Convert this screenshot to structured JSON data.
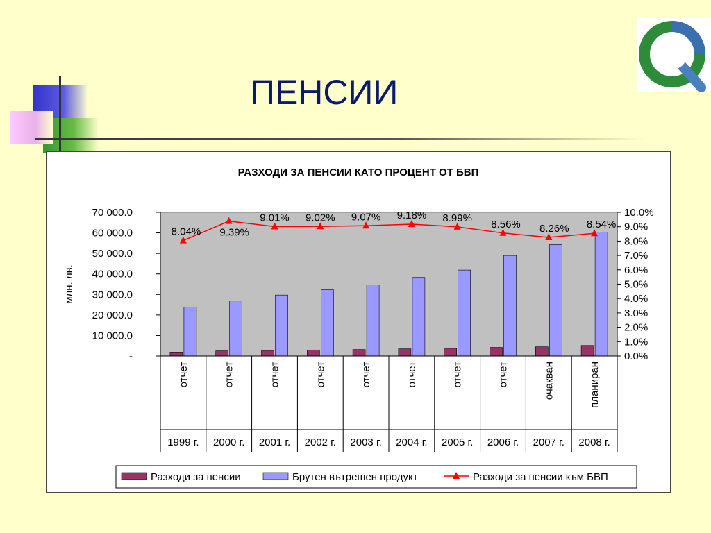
{
  "slide": {
    "title": "ПЕНСИИ"
  },
  "logo": {
    "icon": "circular-q-logo-icon"
  },
  "colors": {
    "background": "#ffffcc",
    "title": "#0b1a6b",
    "pension_bar": "#993366",
    "gdp_bar": "#9999ff",
    "ratio_line": "#ff0000",
    "plot_area": "#c0c0c0"
  },
  "chart_data": {
    "type": "bar",
    "title": "РАЗХОДИ ЗА ПЕНСИИ КАТО ПРОЦЕНТ ОТ БВП",
    "ylabel": "млн. лв.",
    "categories": [
      "1999 г.",
      "2000 г.",
      "2001 г.",
      "2002 г.",
      "2003 г.",
      "2004 г.",
      "2005 г.",
      "2006 г.",
      "2007 г.",
      "2008 г."
    ],
    "subcategories": [
      "отчет",
      "отчет",
      "отчет",
      "отчет",
      "отчет",
      "отчет",
      "отчет",
      "отчет",
      "очакван",
      "планиран"
    ],
    "ylim": [
      0,
      70000
    ],
    "y_ticks": [
      "-",
      "10 000.0",
      "20 000.0",
      "30 000.0",
      "40 000.0",
      "50 000.0",
      "60 000.0",
      "70 000.0"
    ],
    "y2lim": [
      0,
      10
    ],
    "y2_ticks": [
      "0.0%",
      "1.0%",
      "2.0%",
      "3.0%",
      "4.0%",
      "5.0%",
      "6.0%",
      "7.0%",
      "8.0%",
      "9.0%",
      "10.0%"
    ],
    "series": [
      {
        "name": "Разходи за пенсии",
        "type": "bar",
        "axis": "left",
        "values": [
          1900,
          2500,
          2700,
          2950,
          3150,
          3500,
          3750,
          4200,
          4500,
          5150
        ]
      },
      {
        "name": "Брутен вътрешен продукт",
        "type": "bar",
        "axis": "left",
        "values": [
          23800,
          26800,
          29700,
          32300,
          34600,
          38300,
          41900,
          49000,
          54300,
          60400
        ]
      },
      {
        "name": "Разходи за пенсии към БВП",
        "type": "line",
        "axis": "right",
        "values": [
          8.04,
          9.39,
          9.01,
          9.02,
          9.07,
          9.18,
          8.99,
          8.56,
          8.26,
          8.54
        ],
        "labels": [
          "8.04%",
          "9.39%",
          "9.01%",
          "9.02%",
          "9.07%",
          "9.18%",
          "8.99%",
          "8.56%",
          "8.26%",
          "8.54%"
        ]
      }
    ],
    "grid": false,
    "legend": "bottom"
  }
}
